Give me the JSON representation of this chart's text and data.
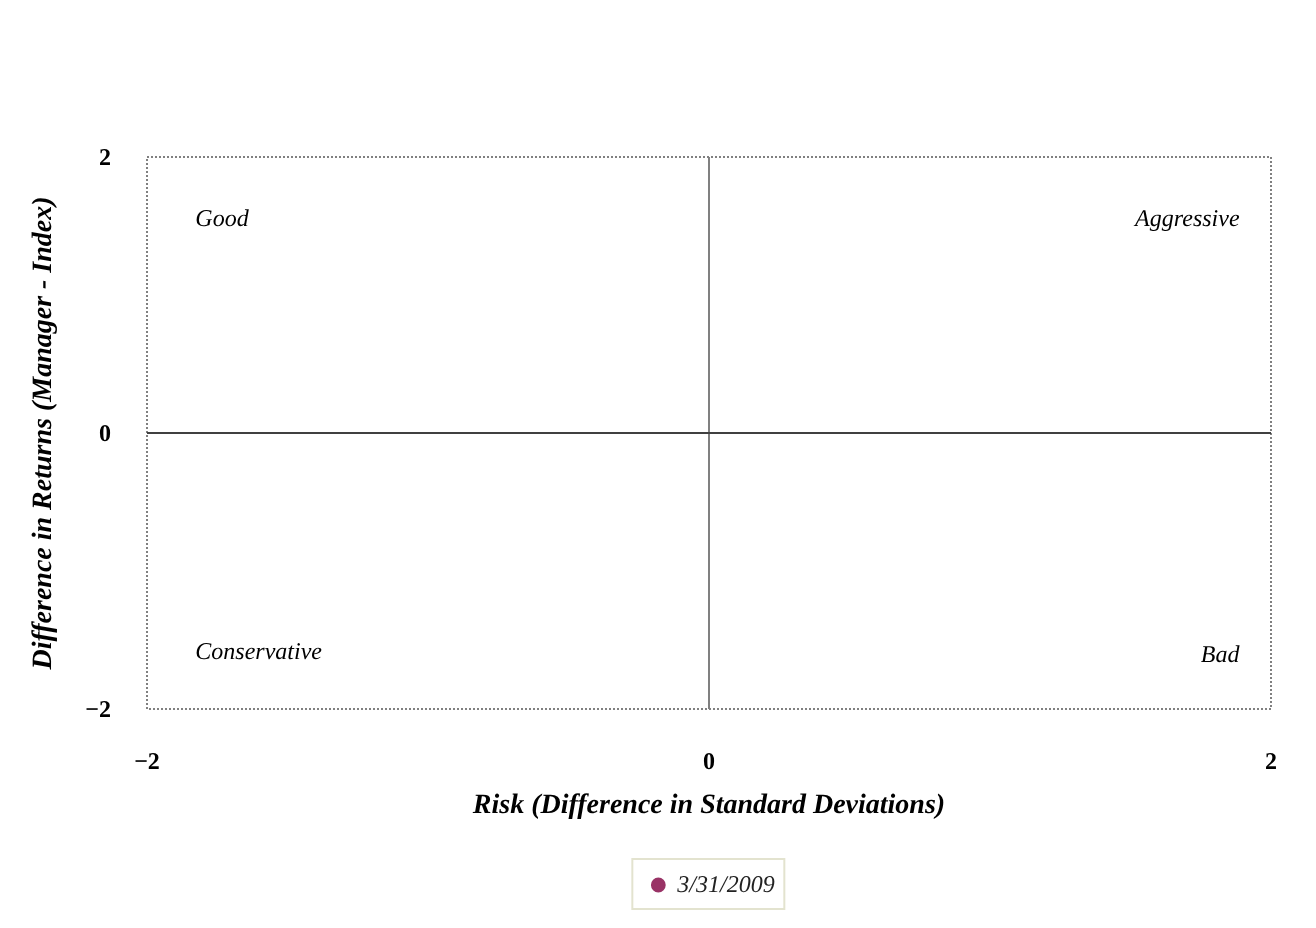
{
  "chart_data": {
    "type": "scatter",
    "xlabel": "Risk (Difference in Standard Deviations)",
    "ylabel": "Difference in Returns (Manager - Index)",
    "xlim": [
      -2,
      2
    ],
    "ylim": [
      -2,
      2
    ],
    "xticks": [
      -2,
      0,
      2
    ],
    "yticks": [
      -2,
      0,
      2
    ],
    "legend": "bottom",
    "marker": "circle",
    "annotations": [
      "Good",
      "Aggressive",
      "Conservative",
      "Bad"
    ],
    "ref_lines": [
      {
        "axis": "x",
        "value": 0,
        "color": "#808080"
      },
      {
        "axis": "y",
        "value": 0,
        "color": "#404040"
      }
    ],
    "series": [
      {
        "name": "3/31/2009",
        "color": "#993366",
        "x": [
          null
        ],
        "values": [
          null
        ]
      }
    ]
  }
}
